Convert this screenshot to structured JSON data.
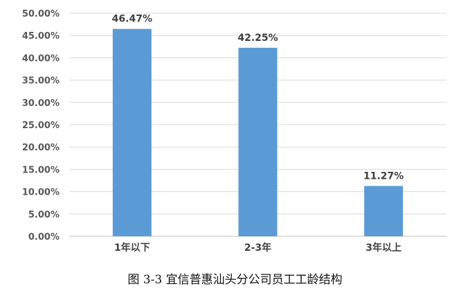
{
  "caption": "图 3-3 宜信普惠汕头分公司员工工龄结构",
  "colors": {
    "bar": "#5B9BD5",
    "grid": "#d9d9d9",
    "axis": "#bfbfbf"
  },
  "chart_data": {
    "type": "bar",
    "categories": [
      "1年以下",
      "2-3年",
      "3年以上"
    ],
    "values": [
      46.47,
      42.25,
      11.27
    ],
    "data_labels": [
      "46.47%",
      "42.25%",
      "11.27%"
    ],
    "ylim": [
      0,
      50
    ],
    "yticks": [
      "0.00%",
      "5.00%",
      "10.00%",
      "15.00%",
      "20.00%",
      "25.00%",
      "30.00%",
      "35.00%",
      "40.00%",
      "45.00%",
      "50.00%"
    ],
    "grid": true,
    "legend": "none"
  }
}
